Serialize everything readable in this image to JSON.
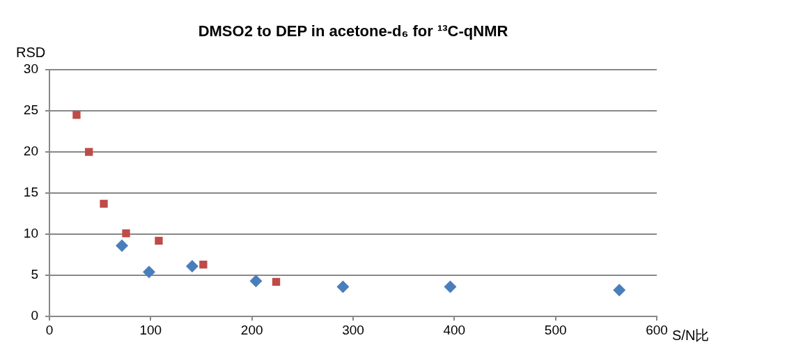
{
  "chart_data": {
    "type": "scatter",
    "title": "DMSO2 to DEP in acetone-d₆ for ¹³C-qNMR",
    "xlabel": "S/N比",
    "ylabel": "RSD",
    "series": [
      {
        "color": "#4a7ebb",
        "marker": "diamond",
        "x": [
          71.6,
          98.4,
          141,
          204,
          290,
          396,
          563
        ],
        "values": [
          8.6,
          5.4,
          6.1,
          4.3,
          3.6,
          3.6,
          3.2
        ]
      },
      {
        "color": "#be4b48",
        "marker": "square",
        "x": [
          26.8,
          39,
          53.7,
          75.7,
          108,
          152,
          224
        ],
        "values": [
          24.5,
          20,
          13.7,
          10.1,
          9.2,
          6.3,
          4.2
        ]
      }
    ],
    "xlim": [
      0,
      600
    ],
    "xticks": [
      0,
      100,
      200,
      300,
      400,
      500,
      600
    ],
    "ylim": [
      0,
      30
    ],
    "yticks": [
      0,
      5,
      10,
      15,
      20,
      25,
      30
    ],
    "grid": "y",
    "legend": false
  }
}
